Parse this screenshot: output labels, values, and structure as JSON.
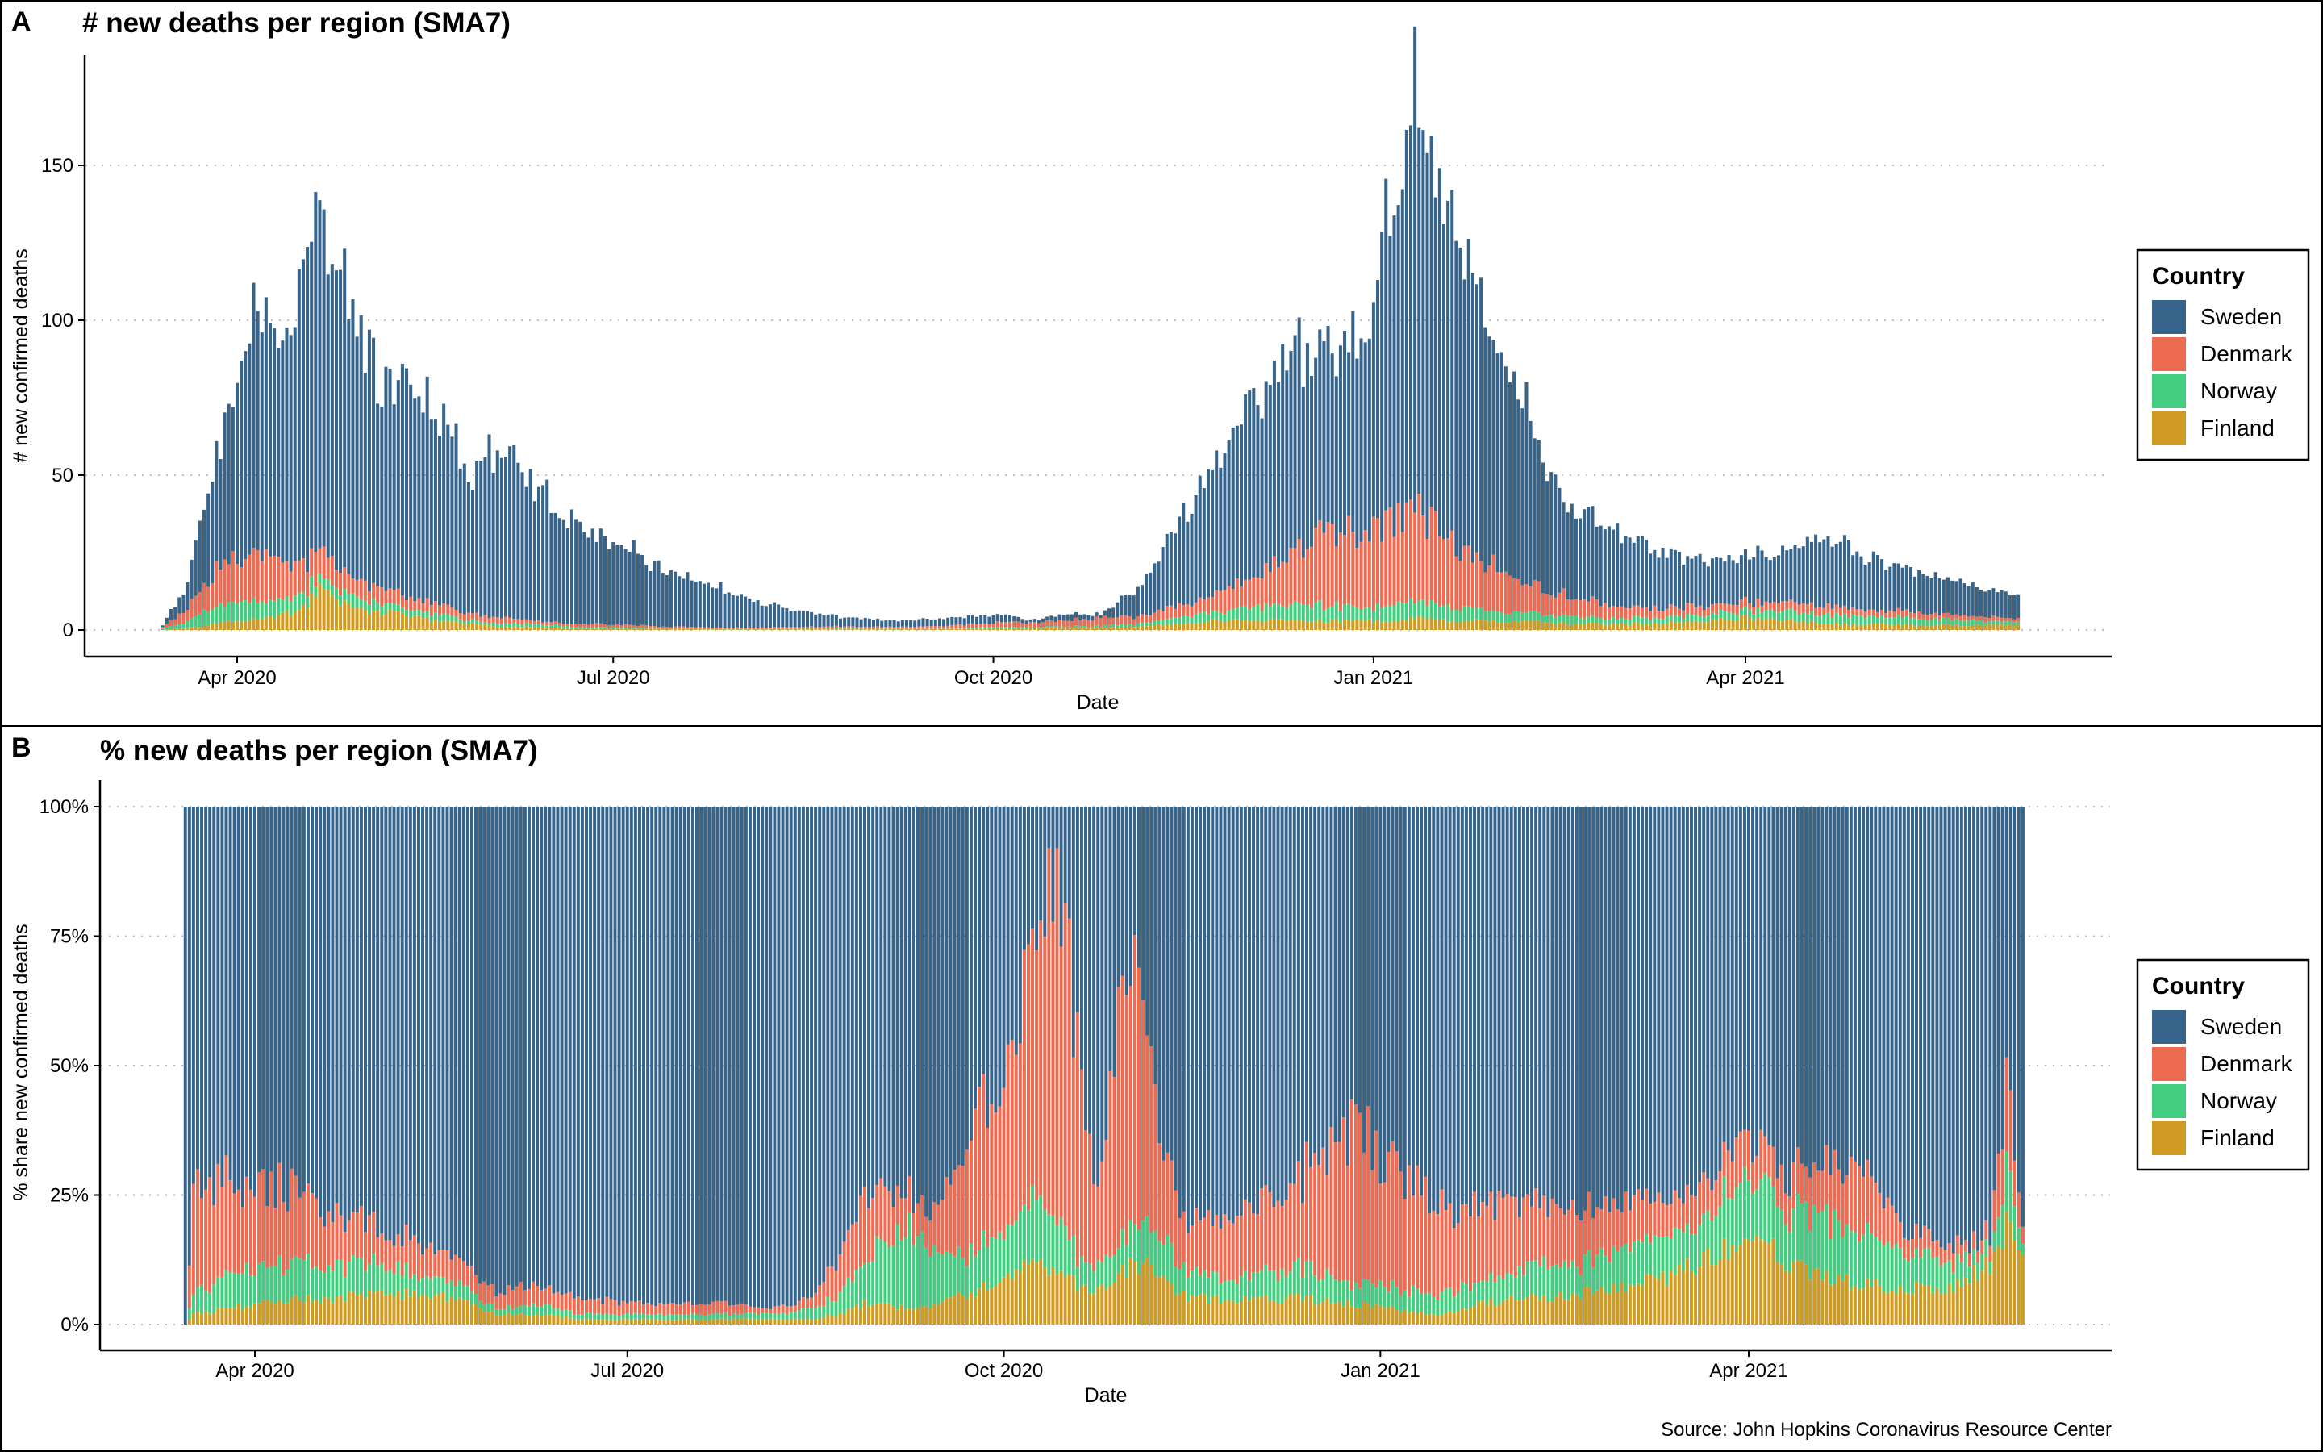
{
  "colors": {
    "Sweden": "#36648b",
    "Denmark": "#ee6a50",
    "Norway": "#43cd80",
    "Finland": "#d09b22"
  },
  "legend": {
    "title": "Country",
    "items": [
      "Sweden",
      "Denmark",
      "Norway",
      "Finland"
    ]
  },
  "source": "Source: John Hopkins Coronavirus Resource Center",
  "chart_data": [
    {
      "panel_tag": "A",
      "type": "bar",
      "stacked": true,
      "title": "# new deaths per region (SMA7)",
      "xlabel": "Date",
      "ylabel": "# new confirmed deaths",
      "x_ticks": [
        "Apr 2020",
        "Jul 2020",
        "Oct 2020",
        "Jan 2021",
        "Apr 2021"
      ],
      "y_ticks": [
        "0",
        "50",
        "100",
        "150"
      ],
      "ylim": [
        0,
        182
      ],
      "xlim": [
        "2020-03-05",
        "2021-06-30"
      ],
      "grid": "horizontal dotted",
      "legend_position": "right",
      "series_order": [
        "Finland",
        "Norway",
        "Denmark",
        "Sweden"
      ],
      "keyframes": [
        {
          "date": "2020-03-14",
          "Sweden": 0.5,
          "Denmark": 0.5,
          "Norway": 0.5,
          "Finland": 0
        },
        {
          "date": "2020-03-20",
          "Sweden": 8,
          "Denmark": 4,
          "Norway": 2,
          "Finland": 0.5
        },
        {
          "date": "2020-03-27",
          "Sweden": 35,
          "Denmark": 12,
          "Norway": 6,
          "Finland": 2
        },
        {
          "date": "2020-04-01",
          "Sweden": 57,
          "Denmark": 14,
          "Norway": 6,
          "Finland": 3
        },
        {
          "date": "2020-04-06",
          "Sweden": 75,
          "Denmark": 16,
          "Norway": 6,
          "Finland": 4
        },
        {
          "date": "2020-04-10",
          "Sweden": 72,
          "Denmark": 14,
          "Norway": 5,
          "Finland": 4
        },
        {
          "date": "2020-04-15",
          "Sweden": 80,
          "Denmark": 11,
          "Norway": 5,
          "Finland": 6
        },
        {
          "date": "2020-04-21",
          "Sweden": 108,
          "Denmark": 9,
          "Norway": 4,
          "Finland": 12
        },
        {
          "date": "2020-04-28",
          "Sweden": 85,
          "Denmark": 6,
          "Norway": 4,
          "Finland": 8
        },
        {
          "date": "2020-05-05",
          "Sweden": 65,
          "Denmark": 5,
          "Norway": 3,
          "Finland": 6
        },
        {
          "date": "2020-05-12",
          "Sweden": 70,
          "Denmark": 4,
          "Norway": 2,
          "Finland": 5
        },
        {
          "date": "2020-05-20",
          "Sweden": 60,
          "Denmark": 3,
          "Norway": 2,
          "Finland": 3
        },
        {
          "date": "2020-05-28",
          "Sweden": 42,
          "Denmark": 2,
          "Norway": 1,
          "Finland": 2
        },
        {
          "date": "2020-06-04",
          "Sweden": 55,
          "Denmark": 2,
          "Norway": 1,
          "Finland": 1
        },
        {
          "date": "2020-06-12",
          "Sweden": 42,
          "Denmark": 1,
          "Norway": 1,
          "Finland": 1
        },
        {
          "date": "2020-06-22",
          "Sweden": 30,
          "Denmark": 1,
          "Norway": 0.5,
          "Finland": 0.5
        },
        {
          "date": "2020-07-02",
          "Sweden": 27,
          "Denmark": 1,
          "Norway": 0.5,
          "Finland": 0.3
        },
        {
          "date": "2020-07-12",
          "Sweden": 18,
          "Denmark": 0.6,
          "Norway": 0.3,
          "Finland": 0.3
        },
        {
          "date": "2020-07-25",
          "Sweden": 13,
          "Denmark": 0.4,
          "Norway": 0.2,
          "Finland": 0.2
        },
        {
          "date": "2020-08-08",
          "Sweden": 7,
          "Denmark": 0.4,
          "Norway": 0.2,
          "Finland": 0.2
        },
        {
          "date": "2020-08-25",
          "Sweden": 3,
          "Denmark": 0.5,
          "Norway": 0.5,
          "Finland": 0.2
        },
        {
          "date": "2020-09-08",
          "Sweden": 2,
          "Denmark": 0.5,
          "Norway": 0.3,
          "Finland": 0.2
        },
        {
          "date": "2020-09-20",
          "Sweden": 2.5,
          "Denmark": 0.8,
          "Norway": 0.3,
          "Finland": 0.3
        },
        {
          "date": "2020-10-03",
          "Sweden": 2.5,
          "Denmark": 1.5,
          "Norway": 0.5,
          "Finland": 0.5
        },
        {
          "date": "2020-10-10",
          "Sweden": 0.8,
          "Denmark": 1.5,
          "Norway": 0.3,
          "Finland": 0.6
        },
        {
          "date": "2020-10-20",
          "Sweden": 2,
          "Denmark": 2,
          "Norway": 0.5,
          "Finland": 0.8
        },
        {
          "date": "2020-10-27",
          "Sweden": 1,
          "Denmark": 2.5,
          "Norway": 0.5,
          "Finland": 0.8
        },
        {
          "date": "2020-11-05",
          "Sweden": 9,
          "Denmark": 2.5,
          "Norway": 1,
          "Finland": 1
        },
        {
          "date": "2020-11-15",
          "Sweden": 26,
          "Denmark": 4,
          "Norway": 2,
          "Finland": 2
        },
        {
          "date": "2020-11-22",
          "Sweden": 40,
          "Denmark": 5,
          "Norway": 3,
          "Finland": 3
        },
        {
          "date": "2020-12-01",
          "Sweden": 55,
          "Denmark": 9,
          "Norway": 4,
          "Finland": 3
        },
        {
          "date": "2020-12-10",
          "Sweden": 63,
          "Denmark": 14,
          "Norway": 5,
          "Finland": 3
        },
        {
          "date": "2020-12-20",
          "Sweden": 60,
          "Denmark": 22,
          "Norway": 5,
          "Finland": 3
        },
        {
          "date": "2020-12-28",
          "Sweden": 60,
          "Denmark": 25,
          "Norway": 4,
          "Finland": 3
        },
        {
          "date": "2021-01-05",
          "Sweden": 95,
          "Denmark": 27,
          "Norway": 5,
          "Finland": 3
        },
        {
          "date": "2021-01-11",
          "Sweden": 130,
          "Denmark": 28,
          "Norway": 6,
          "Finland": 4
        },
        {
          "date": "2021-01-17",
          "Sweden": 105,
          "Denmark": 26,
          "Norway": 5,
          "Finland": 3
        },
        {
          "date": "2021-01-25",
          "Sweden": 88,
          "Denmark": 18,
          "Norway": 4,
          "Finland": 3
        },
        {
          "date": "2021-02-05",
          "Sweden": 60,
          "Denmark": 10,
          "Norway": 3,
          "Finland": 3
        },
        {
          "date": "2021-02-15",
          "Sweden": 32,
          "Denmark": 7,
          "Norway": 3,
          "Finland": 2
        },
        {
          "date": "2021-02-25",
          "Sweden": 25,
          "Denmark": 5,
          "Norway": 2,
          "Finland": 2
        },
        {
          "date": "2021-03-08",
          "Sweden": 20,
          "Denmark": 3,
          "Norway": 2,
          "Finland": 2
        },
        {
          "date": "2021-03-20",
          "Sweden": 15,
          "Denmark": 3,
          "Norway": 2,
          "Finland": 3
        },
        {
          "date": "2021-04-01",
          "Sweden": 14,
          "Denmark": 2.5,
          "Norway": 2.5,
          "Finland": 4
        },
        {
          "date": "2021-04-12",
          "Sweden": 17,
          "Denmark": 3,
          "Norway": 3,
          "Finland": 3
        },
        {
          "date": "2021-04-20",
          "Sweden": 22,
          "Denmark": 2.5,
          "Norway": 3,
          "Finland": 2
        },
        {
          "date": "2021-05-01",
          "Sweden": 16,
          "Denmark": 2,
          "Norway": 2.5,
          "Finland": 2
        },
        {
          "date": "2021-05-15",
          "Sweden": 12,
          "Denmark": 2,
          "Norway": 2,
          "Finland": 1.5
        },
        {
          "date": "2021-05-25",
          "Sweden": 10,
          "Denmark": 1.5,
          "Norway": 1.5,
          "Finland": 1.5
        },
        {
          "date": "2021-06-06",
          "Sweden": 8,
          "Denmark": 1,
          "Norway": 1,
          "Finland": 1.5
        }
      ]
    },
    {
      "panel_tag": "B",
      "type": "bar",
      "stacked": true,
      "percent": true,
      "title": "% new deaths per region (SMA7)",
      "xlabel": "Date",
      "ylabel": "% share new confirmed deaths",
      "x_ticks": [
        "Apr 2020",
        "Jul 2020",
        "Oct 2020",
        "Jan 2021",
        "Apr 2021"
      ],
      "y_ticks": [
        "0%",
        "25%",
        "50%",
        "75%",
        "100%"
      ],
      "ylim": [
        0,
        100
      ],
      "xlim": [
        "2020-03-05",
        "2021-06-30"
      ],
      "grid": "horizontal dotted",
      "legend_position": "right",
      "series_order": [
        "Finland",
        "Norway",
        "Denmark",
        "Sweden"
      ],
      "keyframes": [
        {
          "date": "2020-03-15",
          "Finland": 0,
          "Norway": 0,
          "Denmark": 0
        },
        {
          "date": "2020-03-17",
          "Finland": 2,
          "Norway": 4,
          "Denmark": 20
        },
        {
          "date": "2020-03-25",
          "Finland": 3,
          "Norway": 6,
          "Denmark": 18
        },
        {
          "date": "2020-04-01",
          "Finland": 4,
          "Norway": 7,
          "Denmark": 16
        },
        {
          "date": "2020-04-10",
          "Finland": 5,
          "Norway": 7,
          "Denmark": 14
        },
        {
          "date": "2020-04-20",
          "Finland": 5,
          "Norway": 6,
          "Denmark": 11
        },
        {
          "date": "2020-05-01",
          "Finland": 6,
          "Norway": 6,
          "Denmark": 7
        },
        {
          "date": "2020-05-10",
          "Finland": 6,
          "Norway": 4,
          "Denmark": 6
        },
        {
          "date": "2020-05-20",
          "Finland": 5,
          "Norway": 3,
          "Denmark": 5
        },
        {
          "date": "2020-05-30",
          "Finland": 2,
          "Norway": 1,
          "Denmark": 3
        },
        {
          "date": "2020-06-08",
          "Finland": 2,
          "Norway": 2,
          "Denmark": 4
        },
        {
          "date": "2020-06-20",
          "Finland": 1,
          "Norway": 1,
          "Denmark": 3
        },
        {
          "date": "2020-07-05",
          "Finland": 1,
          "Norway": 1,
          "Denmark": 2
        },
        {
          "date": "2020-07-25",
          "Finland": 1,
          "Norway": 1,
          "Denmark": 2
        },
        {
          "date": "2020-08-05",
          "Finland": 1,
          "Norway": 1,
          "Denmark": 1
        },
        {
          "date": "2020-08-15",
          "Finland": 1,
          "Norway": 2,
          "Denmark": 2
        },
        {
          "date": "2020-08-22",
          "Finland": 2,
          "Norway": 4,
          "Denmark": 7
        },
        {
          "date": "2020-08-28",
          "Finland": 4,
          "Norway": 8,
          "Denmark": 13
        },
        {
          "date": "2020-09-02",
          "Finland": 4,
          "Norway": 12,
          "Denmark": 10
        },
        {
          "date": "2020-09-08",
          "Finland": 3,
          "Norway": 15,
          "Denmark": 6
        },
        {
          "date": "2020-09-15",
          "Finland": 4,
          "Norway": 9,
          "Denmark": 8
        },
        {
          "date": "2020-09-22",
          "Finland": 6,
          "Norway": 8,
          "Denmark": 22
        },
        {
          "date": "2020-09-28",
          "Finland": 8,
          "Norway": 8,
          "Denmark": 30
        },
        {
          "date": "2020-10-02",
          "Finland": 10,
          "Norway": 10,
          "Denmark": 28
        },
        {
          "date": "2020-10-06",
          "Finland": 12,
          "Norway": 10,
          "Denmark": 40
        },
        {
          "date": "2020-10-09",
          "Finland": 12,
          "Norway": 14,
          "Denmark": 60
        },
        {
          "date": "2020-10-14",
          "Finland": 10,
          "Norway": 10,
          "Denmark": 66
        },
        {
          "date": "2020-10-19",
          "Finland": 8,
          "Norway": 6,
          "Denmark": 40
        },
        {
          "date": "2020-10-24",
          "Finland": 7,
          "Norway": 5,
          "Denmark": 15
        },
        {
          "date": "2020-10-29",
          "Finland": 10,
          "Norway": 6,
          "Denmark": 50
        },
        {
          "date": "2020-11-04",
          "Finland": 12,
          "Norway": 8,
          "Denmark": 48
        },
        {
          "date": "2020-11-08",
          "Finland": 10,
          "Norway": 8,
          "Denmark": 20
        },
        {
          "date": "2020-11-15",
          "Finland": 5,
          "Norway": 5,
          "Denmark": 10
        },
        {
          "date": "2020-11-25",
          "Finland": 5,
          "Norway": 4,
          "Denmark": 12
        },
        {
          "date": "2020-12-05",
          "Finland": 5,
          "Norway": 5,
          "Denmark": 14
        },
        {
          "date": "2020-12-15",
          "Finland": 5,
          "Norway": 6,
          "Denmark": 20
        },
        {
          "date": "2020-12-25",
          "Finland": 4,
          "Norway": 4,
          "Denmark": 30
        },
        {
          "date": "2021-01-05",
          "Finland": 3,
          "Norway": 4,
          "Denmark": 22
        },
        {
          "date": "2021-01-15",
          "Finland": 2,
          "Norway": 4,
          "Denmark": 18
        },
        {
          "date": "2021-01-25",
          "Finland": 4,
          "Norway": 4,
          "Denmark": 16
        },
        {
          "date": "2021-02-05",
          "Finland": 5,
          "Norway": 6,
          "Denmark": 12
        },
        {
          "date": "2021-02-20",
          "Finland": 6,
          "Norway": 6,
          "Denmark": 10
        },
        {
          "date": "2021-03-05",
          "Finland": 8,
          "Norway": 8,
          "Denmark": 8
        },
        {
          "date": "2021-03-15",
          "Finland": 10,
          "Norway": 8,
          "Denmark": 6
        },
        {
          "date": "2021-03-25",
          "Finland": 14,
          "Norway": 10,
          "Denmark": 8
        },
        {
          "date": "2021-04-01",
          "Finland": 18,
          "Norway": 12,
          "Denmark": 8
        },
        {
          "date": "2021-04-10",
          "Finland": 12,
          "Norway": 10,
          "Denmark": 7
        },
        {
          "date": "2021-04-20",
          "Finland": 9,
          "Norway": 12,
          "Denmark": 10
        },
        {
          "date": "2021-04-28",
          "Finland": 8,
          "Norway": 10,
          "Denmark": 14
        },
        {
          "date": "2021-05-08",
          "Finland": 7,
          "Norway": 8,
          "Denmark": 5
        },
        {
          "date": "2021-05-20",
          "Finland": 7,
          "Norway": 5,
          "Denmark": 3
        },
        {
          "date": "2021-05-30",
          "Finland": 12,
          "Norway": 3,
          "Denmark": 3
        },
        {
          "date": "2021-06-03",
          "Finland": 20,
          "Norway": 10,
          "Denmark": 18
        },
        {
          "date": "2021-06-07",
          "Finland": 12,
          "Norway": 2,
          "Denmark": 3
        }
      ]
    }
  ]
}
